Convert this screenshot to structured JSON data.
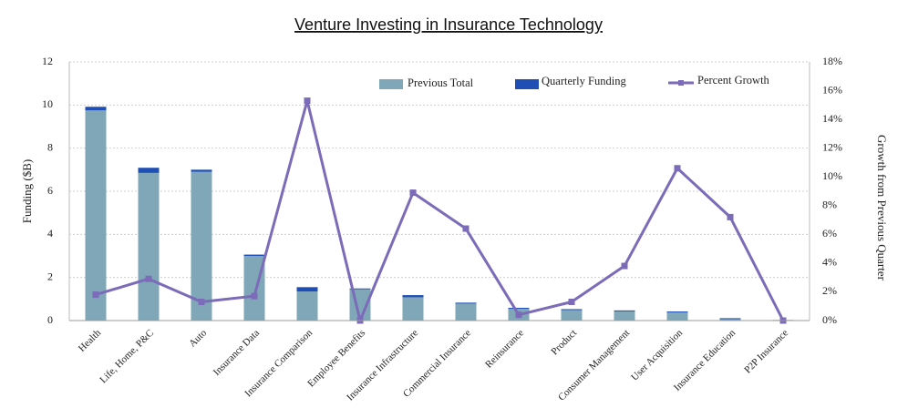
{
  "chart_data": {
    "type": "bar",
    "title": "Venture Investing in Insurance Technology",
    "ylabel": "Funding ($B)",
    "y2label": "Growth from Previous Quarter",
    "ylim": [
      0,
      12
    ],
    "y2lim": [
      0,
      18
    ],
    "yticks": [
      "0",
      "2",
      "4",
      "6",
      "8",
      "10",
      "12"
    ],
    "y2ticks": [
      "0%",
      "2%",
      "4%",
      "6%",
      "8%",
      "10%",
      "12%",
      "14%",
      "16%",
      "18%"
    ],
    "grid": true,
    "legend_position": "top-right",
    "categories": [
      "Health",
      "Life, Home, P&C",
      "Auto",
      "Insurance Data",
      "Insurance Comparison",
      "Employee Benefits",
      "Insurance Infrastructure",
      "Commercial Insurance",
      "Reinsurance",
      "Product",
      "Consumer Management",
      "User Acquisition",
      "Insurance Education",
      "P2P Insurance"
    ],
    "series": [
      {
        "name": "Previous Total",
        "kind": "bar-stack",
        "color": "#7FA7B8",
        "values": [
          9.75,
          6.85,
          6.9,
          3.0,
          1.35,
          1.45,
          1.08,
          0.8,
          0.58,
          0.52,
          0.45,
          0.4,
          0.1,
          0.03
        ]
      },
      {
        "name": "Quarterly Funding",
        "kind": "bar-stack",
        "color": "#1F4FB5",
        "values": [
          0.17,
          0.24,
          0.1,
          0.06,
          0.2,
          0.04,
          0.1,
          0.03,
          0.01,
          0.01,
          0.02,
          0.02,
          0.01,
          0.0
        ]
      },
      {
        "name": "Percent Growth",
        "kind": "line",
        "axis": "right",
        "color": "#7B6BB8",
        "values": [
          1.8,
          2.9,
          1.3,
          1.7,
          15.3,
          0.0,
          8.9,
          6.4,
          0.4,
          1.3,
          3.8,
          10.6,
          7.2,
          0.0
        ]
      }
    ]
  }
}
